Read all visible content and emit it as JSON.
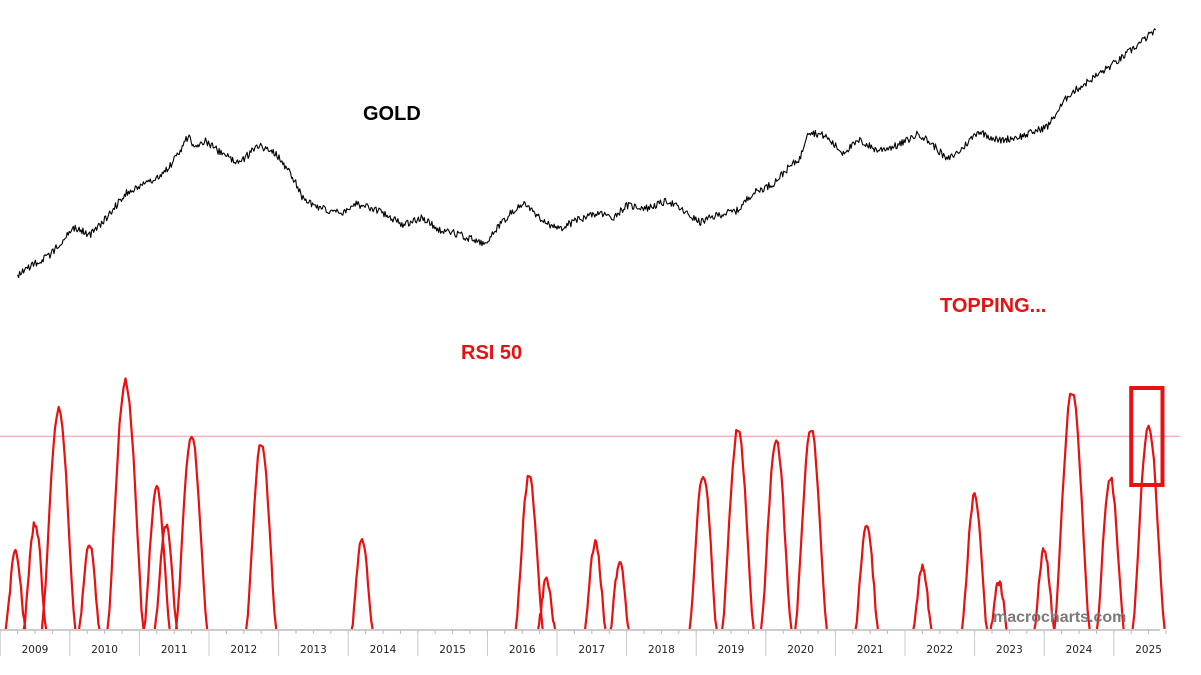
{
  "chart_data": [
    {
      "type": "line",
      "title": "GOLD",
      "series": [
        {
          "values": [
            {
              "x": 2008.75,
              "y": 0.04
            },
            {
              "x": 2008.95,
              "y": 0.08
            },
            {
              "x": 2009.2,
              "y": 0.12
            },
            {
              "x": 2009.55,
              "y": 0.24
            },
            {
              "x": 2009.8,
              "y": 0.21
            },
            {
              "x": 2010.0,
              "y": 0.27
            },
            {
              "x": 2010.3,
              "y": 0.38
            },
            {
              "x": 2010.6,
              "y": 0.42
            },
            {
              "x": 2010.9,
              "y": 0.48
            },
            {
              "x": 2011.1,
              "y": 0.56
            },
            {
              "x": 2011.2,
              "y": 0.62
            },
            {
              "x": 2011.3,
              "y": 0.57
            },
            {
              "x": 2011.45,
              "y": 0.6
            },
            {
              "x": 2011.7,
              "y": 0.54
            },
            {
              "x": 2011.95,
              "y": 0.51
            },
            {
              "x": 2012.2,
              "y": 0.58
            },
            {
              "x": 2012.45,
              "y": 0.55
            },
            {
              "x": 2012.7,
              "y": 0.45
            },
            {
              "x": 2012.85,
              "y": 0.36
            },
            {
              "x": 2013.0,
              "y": 0.33
            },
            {
              "x": 2013.2,
              "y": 0.31
            },
            {
              "x": 2013.45,
              "y": 0.3
            },
            {
              "x": 2013.6,
              "y": 0.34
            },
            {
              "x": 2013.8,
              "y": 0.32
            },
            {
              "x": 2014.0,
              "y": 0.3
            },
            {
              "x": 2014.3,
              "y": 0.25
            },
            {
              "x": 2014.55,
              "y": 0.28
            },
            {
              "x": 2014.8,
              "y": 0.23
            },
            {
              "x": 2015.1,
              "y": 0.21
            },
            {
              "x": 2015.45,
              "y": 0.17
            },
            {
              "x": 2015.6,
              "y": 0.22
            },
            {
              "x": 2015.8,
              "y": 0.29
            },
            {
              "x": 2016.0,
              "y": 0.34
            },
            {
              "x": 2016.25,
              "y": 0.28
            },
            {
              "x": 2016.5,
              "y": 0.23
            },
            {
              "x": 2016.8,
              "y": 0.27
            },
            {
              "x": 2017.1,
              "y": 0.3
            },
            {
              "x": 2017.3,
              "y": 0.28
            },
            {
              "x": 2017.5,
              "y": 0.33
            },
            {
              "x": 2017.8,
              "y": 0.32
            },
            {
              "x": 2018.1,
              "y": 0.35
            },
            {
              "x": 2018.3,
              "y": 0.31
            },
            {
              "x": 2018.55,
              "y": 0.26
            },
            {
              "x": 2018.8,
              "y": 0.29
            },
            {
              "x": 2019.1,
              "y": 0.31
            },
            {
              "x": 2019.3,
              "y": 0.38
            },
            {
              "x": 2019.6,
              "y": 0.42
            },
            {
              "x": 2019.8,
              "y": 0.48
            },
            {
              "x": 2020.0,
              "y": 0.53
            },
            {
              "x": 2020.1,
              "y": 0.64
            },
            {
              "x": 2020.35,
              "y": 0.62
            },
            {
              "x": 2020.6,
              "y": 0.55
            },
            {
              "x": 2020.85,
              "y": 0.6
            },
            {
              "x": 2021.1,
              "y": 0.56
            },
            {
              "x": 2021.4,
              "y": 0.58
            },
            {
              "x": 2021.7,
              "y": 0.63
            },
            {
              "x": 2021.95,
              "y": 0.57
            },
            {
              "x": 2022.1,
              "y": 0.52
            },
            {
              "x": 2022.3,
              "y": 0.56
            },
            {
              "x": 2022.55,
              "y": 0.64
            },
            {
              "x": 2022.85,
              "y": 0.6
            },
            {
              "x": 2023.2,
              "y": 0.62
            },
            {
              "x": 2023.55,
              "y": 0.66
            },
            {
              "x": 2023.85,
              "y": 0.79
            },
            {
              "x": 2024.1,
              "y": 0.84
            },
            {
              "x": 2024.4,
              "y": 0.9
            },
            {
              "x": 2024.6,
              "y": 0.94
            },
            {
              "x": 2024.85,
              "y": 1.0
            },
            {
              "x": 2025.1,
              "y": 1.06
            }
          ]
        }
      ],
      "xlim": [
        2008.5,
        2025.35
      ]
    },
    {
      "type": "line",
      "title": "RSI 50",
      "annotations": [
        "TOPPING..."
      ],
      "x_ticks": [
        "2009",
        "2010",
        "2011",
        "2012",
        "2013",
        "2014",
        "2015",
        "2016",
        "2017",
        "2018",
        "2019",
        "2020",
        "2021",
        "2022",
        "2023",
        "2024",
        "2025"
      ],
      "reference_line": 0.78,
      "highlight": {
        "x_range": [
          2024.75,
          2025.2
        ]
      },
      "series": [
        {
          "peaks": [
            {
              "x": 2008.72,
              "y": 0.31
            },
            {
              "x": 2009.0,
              "y": 0.43
            },
            {
              "x": 2009.34,
              "y": 0.89
            },
            {
              "x": 2009.78,
              "y": 0.35
            },
            {
              "x": 2010.3,
              "y": 1.0
            },
            {
              "x": 2010.75,
              "y": 0.57
            },
            {
              "x": 2010.88,
              "y": 0.42
            },
            {
              "x": 2011.25,
              "y": 0.79
            },
            {
              "x": 2012.25,
              "y": 0.75
            },
            {
              "x": 2013.7,
              "y": 0.37
            },
            {
              "x": 2016.1,
              "y": 0.62
            },
            {
              "x": 2016.35,
              "y": 0.2
            },
            {
              "x": 2017.05,
              "y": 0.35
            },
            {
              "x": 2017.4,
              "y": 0.27
            },
            {
              "x": 2018.6,
              "y": 0.63
            },
            {
              "x": 2019.1,
              "y": 0.81
            },
            {
              "x": 2019.65,
              "y": 0.76
            },
            {
              "x": 2020.15,
              "y": 0.81
            },
            {
              "x": 2020.95,
              "y": 0.43
            },
            {
              "x": 2021.75,
              "y": 0.25
            },
            {
              "x": 2022.5,
              "y": 0.54
            },
            {
              "x": 2022.85,
              "y": 0.19
            },
            {
              "x": 2023.5,
              "y": 0.32
            },
            {
              "x": 2023.9,
              "y": 0.96
            },
            {
              "x": 2024.45,
              "y": 0.61
            },
            {
              "x": 2025.0,
              "y": 0.83
            }
          ]
        }
      ]
    }
  ],
  "watermark": "macrocharts.com"
}
